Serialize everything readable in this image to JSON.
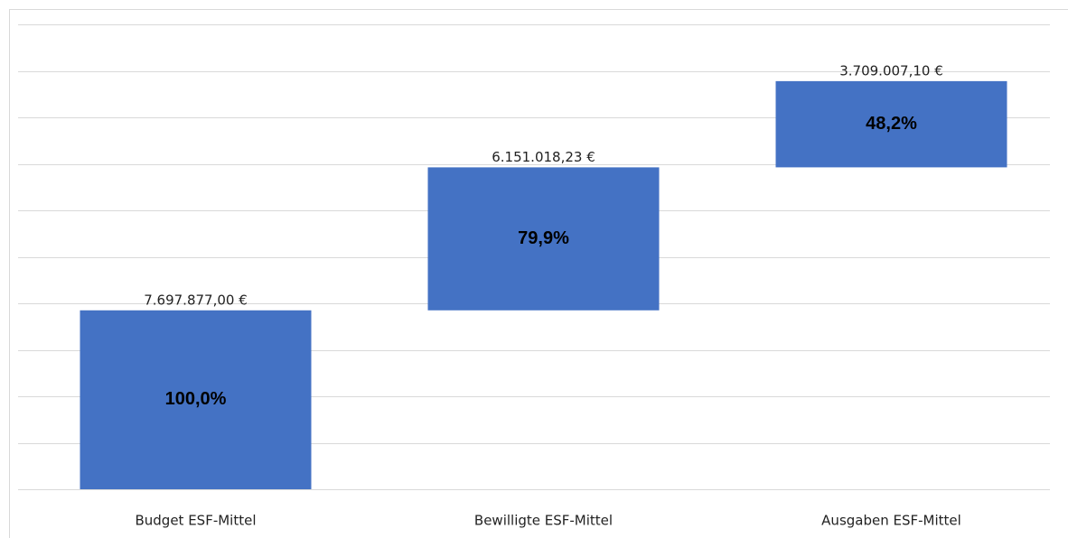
{
  "chart_data": {
    "type": "waterfall",
    "categories": [
      "Budget ESF-Mittel",
      "Bewilligte ESF-Mittel",
      "Ausgaben ESF-Mittel"
    ],
    "series": [
      {
        "color": "none",
        "values": [
          0,
          7697877,
          13848895
        ]
      },
      {
        "color": "#4472c4",
        "values": [
          7697877,
          6151018.23,
          3709007.1
        ],
        "value_labels": [
          "7.697.877,00 €",
          "6.151.018,23 €",
          "3.709.007,10 €"
        ],
        "inner_labels": [
          "100,0%",
          "79,9%",
          "48,2%"
        ]
      }
    ],
    "ylim": [
      0,
      20000000
    ],
    "yticks": [
      0,
      2000000,
      4000000,
      6000000,
      8000000,
      10000000,
      12000000,
      14000000,
      16000000,
      18000000,
      20000000
    ],
    "grid": true
  }
}
